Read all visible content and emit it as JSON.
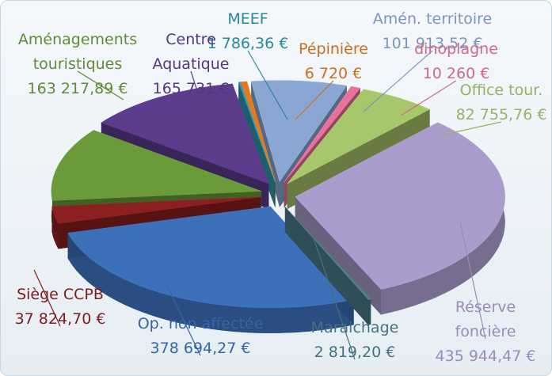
{
  "chart_data": {
    "type": "pie",
    "categories": [
      "MEEF",
      "Pépinière",
      "Amén. territoire",
      "dinoplagne",
      "Office tour.",
      "Réserve foncière",
      "Maraichage",
      "Op. non affectée",
      "Siège CCPB",
      "Aménagements touristiques",
      "Centre Aquatique"
    ],
    "values": [
      1786.36,
      6720,
      101913.52,
      10260,
      82755.76,
      435944.47,
      2819.2,
      378694.27,
      37824.7,
      163217.89,
      165731
    ],
    "value_labels": [
      "1 786,36 €",
      "6 720 €",
      "101 913,52 €",
      "10 260 €",
      "82 755,76 €",
      "435 944,47 €",
      "2 819,20 €",
      "378 694,27 €",
      "37 824,70 €",
      "163 217,89 €",
      "165 731 €"
    ],
    "colors": [
      "#2f97b0",
      "#e07b20",
      "#8ba6d2",
      "#e8739a",
      "#a8c66c",
      "#aa9ccc",
      "#4e7e8e",
      "#3c70b8",
      "#8c1f1f",
      "#6a9a3a",
      "#5c3c8c"
    ]
  }
}
